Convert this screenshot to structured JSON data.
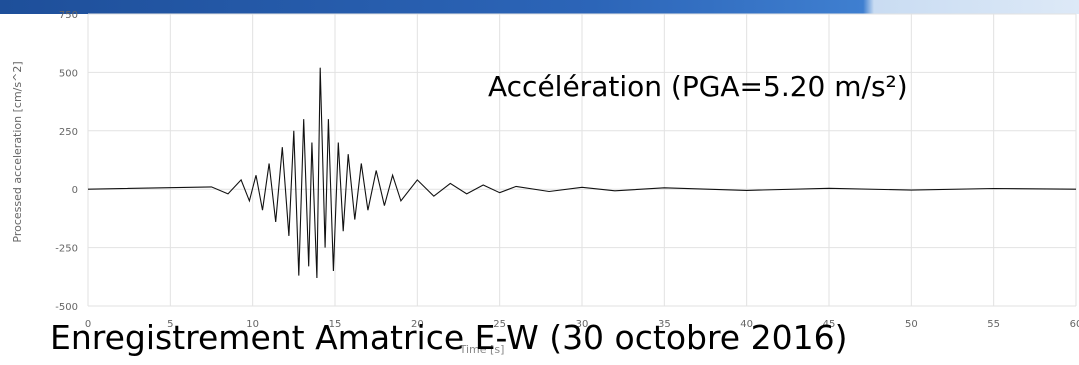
{
  "chart_data": {
    "type": "line",
    "title": "",
    "xlabel": "Time [s]",
    "ylabel": "Processed acceleration [cm/s^2]",
    "xlim": [
      0,
      60
    ],
    "ylim": [
      -500,
      750
    ],
    "x_ticks": [
      0,
      5,
      10,
      15,
      20,
      25,
      30,
      35,
      40,
      45,
      50,
      55,
      60
    ],
    "y_ticks": [
      -500,
      -250,
      0,
      250,
      500,
      750
    ],
    "grid": true,
    "series": [
      {
        "x": [
          0,
          7.5,
          8.5,
          9.3,
          9.8,
          10.2,
          10.6,
          11.0,
          11.4,
          11.8,
          12.2,
          12.5,
          12.8,
          13.1,
          13.4,
          13.6,
          13.9,
          14.1,
          14.4,
          14.6,
          14.9,
          15.2,
          15.5,
          15.8,
          16.2,
          16.6,
          17.0,
          17.5,
          18.0,
          18.5,
          19.0,
          20.0,
          21.0,
          22.0,
          23.0,
          24.0,
          25.0,
          26.0,
          28.0,
          30.0,
          32.0,
          35.0,
          40.0,
          45.0,
          50.0,
          55.0,
          60.0
        ],
        "y": [
          0,
          10,
          -20,
          40,
          -50,
          60,
          -90,
          110,
          -140,
          180,
          -200,
          250,
          -370,
          300,
          -330,
          200,
          -380,
          520,
          -250,
          300,
          -350,
          200,
          -180,
          150,
          -130,
          110,
          -90,
          80,
          -70,
          60,
          -50,
          40,
          -30,
          25,
          -20,
          18,
          -15,
          12,
          -10,
          8,
          -7,
          6,
          -5,
          4,
          -4,
          3,
          0
        ]
      }
    ],
    "annotations": [
      "Accélération (PGA=5.20 m/s²)",
      "Enregistrement Amatrice E-W (30 octobre 2016)"
    ]
  },
  "colors": {
    "line": "#111111",
    "grid": "#e2e2e2",
    "band_primary": "#2c65b8",
    "band_light": "#dde9f7"
  }
}
